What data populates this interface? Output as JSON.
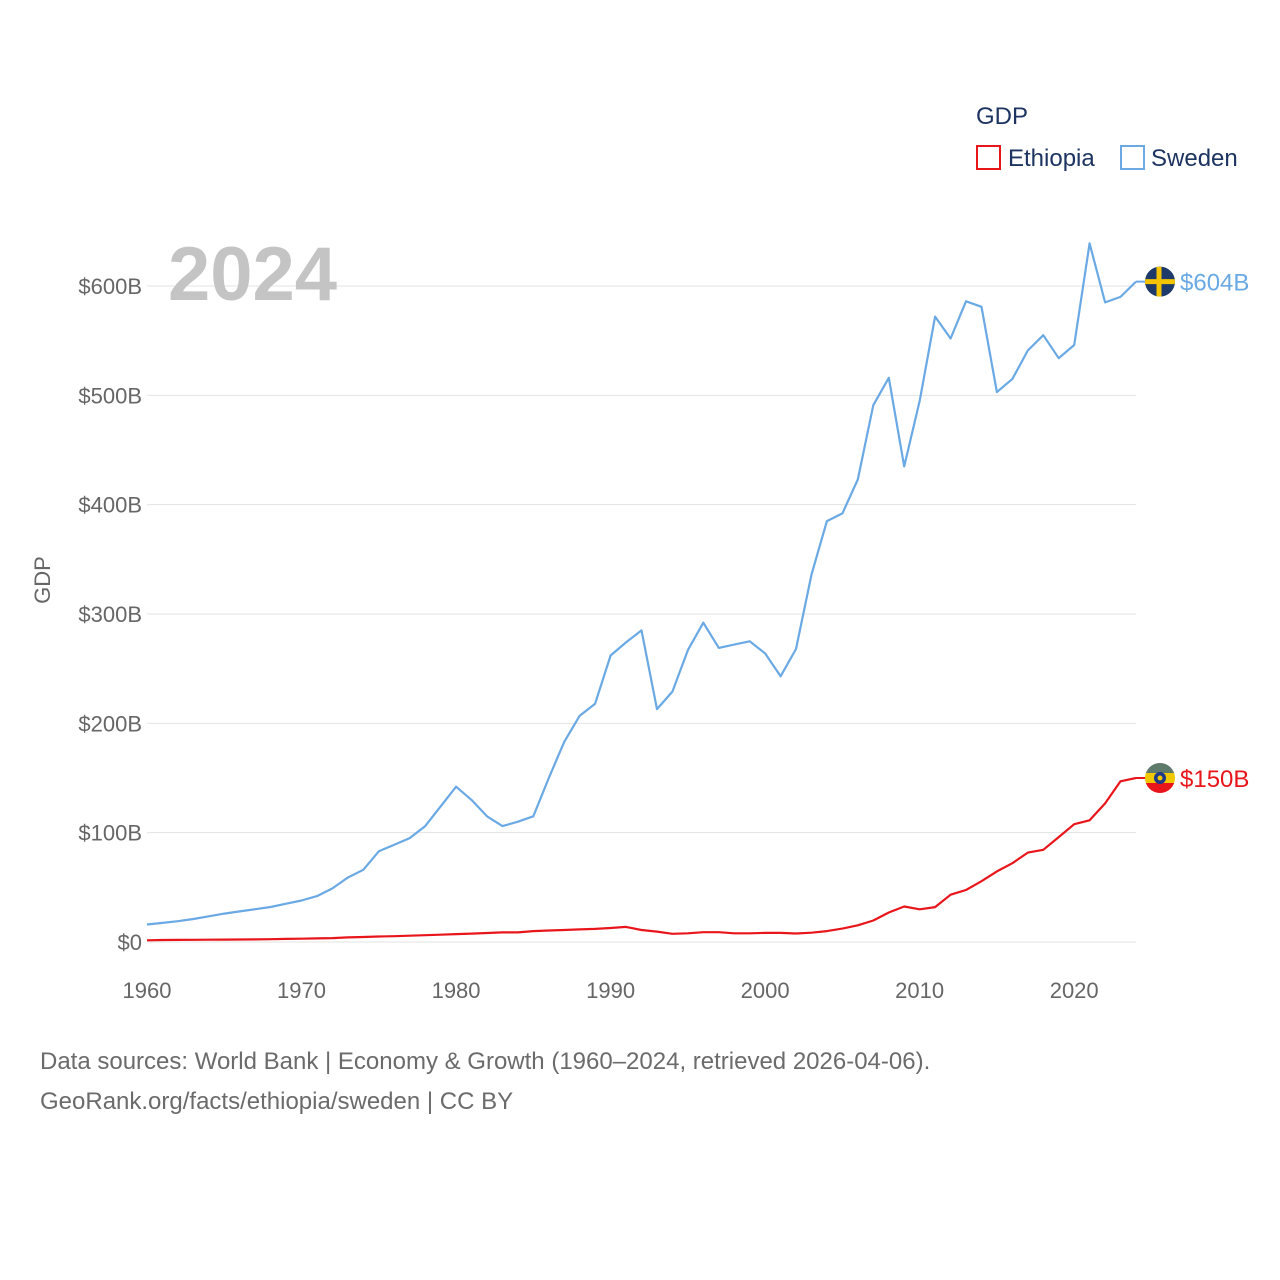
{
  "chart_data": {
    "type": "line",
    "title": "",
    "year_display": "2024",
    "xlabel": "",
    "ylabel": "GDP",
    "xlim": [
      1960,
      2024
    ],
    "ylim": [
      0,
      600
    ],
    "x_ticks": [
      1960,
      1970,
      1980,
      1990,
      2000,
      2010,
      2020
    ],
    "y_ticks": [
      0,
      100,
      200,
      300,
      400,
      500,
      600
    ],
    "y_tick_labels": [
      "$0",
      "$100B",
      "$200B",
      "$300B",
      "$400B",
      "$500B",
      "$600B"
    ],
    "legend": {
      "title": "GDP",
      "position": "top-right"
    },
    "x": [
      1960,
      1961,
      1962,
      1963,
      1964,
      1965,
      1966,
      1967,
      1968,
      1969,
      1970,
      1971,
      1972,
      1973,
      1974,
      1975,
      1976,
      1977,
      1978,
      1979,
      1980,
      1981,
      1982,
      1983,
      1984,
      1985,
      1986,
      1987,
      1988,
      1989,
      1990,
      1991,
      1992,
      1993,
      1994,
      1995,
      1996,
      1997,
      1998,
      1999,
      2000,
      2001,
      2002,
      2003,
      2004,
      2005,
      2006,
      2007,
      2008,
      2009,
      2010,
      2011,
      2012,
      2013,
      2014,
      2015,
      2016,
      2017,
      2018,
      2019,
      2020,
      2021,
      2022,
      2023,
      2024
    ],
    "series": [
      {
        "name": "Ethiopia",
        "color": "#e8161b",
        "end_label": "$150B",
        "flag": "ethiopia-flag",
        "values": [
          1.6,
          1.8,
          1.9,
          2.0,
          2.1,
          2.2,
          2.3,
          2.4,
          2.6,
          2.8,
          3.0,
          3.3,
          3.6,
          4.2,
          4.6,
          5.0,
          5.3,
          5.8,
          6.2,
          6.7,
          7.2,
          7.7,
          8.2,
          8.8,
          8.8,
          10.0,
          10.5,
          11.0,
          11.5,
          12.0,
          12.8,
          13.8,
          11.0,
          9.5,
          7.5,
          8.0,
          9.0,
          9.0,
          8.0,
          8.0,
          8.3,
          8.3,
          7.8,
          8.5,
          10.0,
          12.3,
          15.3,
          19.7,
          27.0,
          32.5,
          29.9,
          31.9,
          43.3,
          47.6,
          55.6,
          64.6,
          72.1,
          81.8,
          84.3,
          95.9,
          107.7,
          111.3,
          126.8,
          147.0,
          150.0
        ]
      },
      {
        "name": "Sweden",
        "color": "#6aa9e4",
        "end_label": "$604B",
        "flag": "sweden-flag",
        "values": [
          16,
          17.5,
          19,
          21,
          23.5,
          26,
          28,
          30,
          32,
          35,
          38,
          42,
          49,
          59,
          66,
          83,
          89,
          95,
          106,
          124,
          142,
          130,
          115,
          106,
          110,
          115,
          150,
          183,
          207,
          218,
          262,
          274,
          285,
          213,
          229,
          267,
          292,
          269,
          272,
          275,
          264,
          243,
          268,
          336,
          385,
          392,
          423,
          491,
          516,
          435,
          495,
          572,
          552,
          586,
          581,
          503,
          515,
          541,
          555,
          534,
          546,
          639,
          585,
          590,
          604
        ]
      }
    ]
  },
  "source": {
    "line1": "Data sources: World Bank | Economy & Growth (1960–2024, retrieved 2026-04-06).",
    "line2": "GeoRank.org/facts/ethiopia/sweden | CC BY"
  }
}
